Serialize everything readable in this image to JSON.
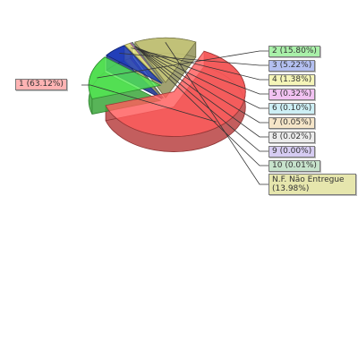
{
  "chart_data": {
    "type": "pie",
    "style": "3d-exploded",
    "slices": [
      {
        "label": "1 (63.12%)",
        "value": 63.12,
        "color": "#ff5b5b"
      },
      {
        "label": "2 (15.80%)",
        "value": 15.8,
        "color": "#52e852"
      },
      {
        "label": "3 (5.22%)",
        "value": 5.22,
        "color": "#1d3dbf"
      },
      {
        "label": "4 (1.38%)",
        "value": 1.38,
        "color": "#e6e681"
      },
      {
        "label": "5 (0.32%)",
        "value": 0.32,
        "color": "#e48ae4"
      },
      {
        "label": "6 (0.10%)",
        "value": 0.1,
        "color": "#8fd9e6"
      },
      {
        "label": "7 (0.05%)",
        "value": 0.05,
        "color": "#e6c896"
      },
      {
        "label": "8 (0.02%)",
        "value": 0.02,
        "color": "#cfcfcf"
      },
      {
        "label": "9 (0.00%)",
        "value": 0.0,
        "color": "#a996e0"
      },
      {
        "label": "10 (0.01%)",
        "value": 0.01,
        "color": "#97c6a0"
      },
      {
        "label": "N.F. Não Entregue (13.98%)",
        "value": 13.98,
        "color": "#c8c87a"
      }
    ]
  }
}
